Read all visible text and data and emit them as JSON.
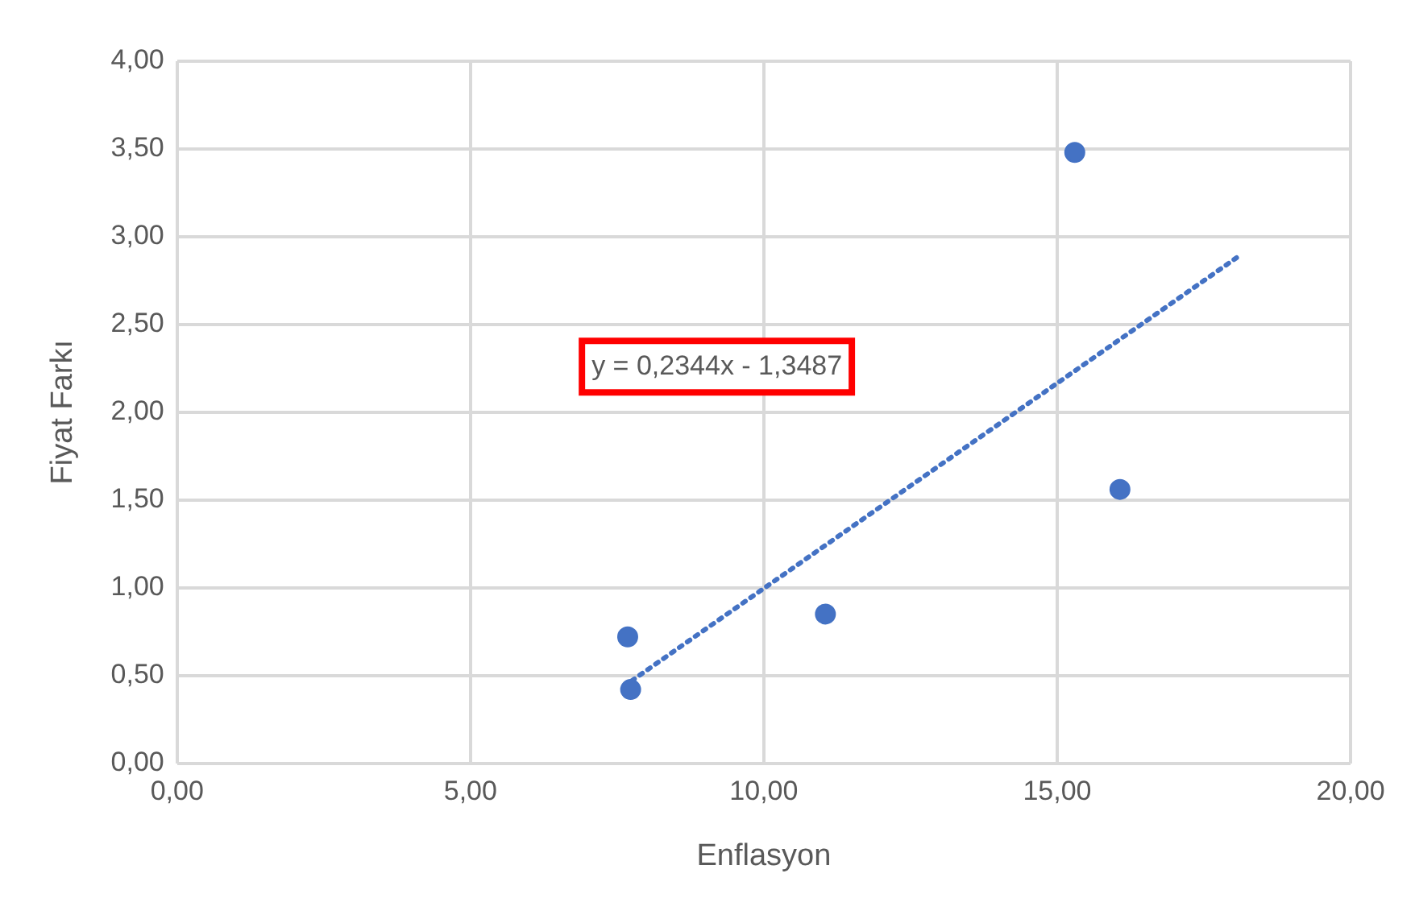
{
  "chart_data": {
    "type": "scatter",
    "xlabel": "Enflasyon",
    "ylabel": "Fiyat Farkı",
    "series": [
      {
        "color": "#4472c4",
        "x": [
          7.68,
          7.73,
          11.05,
          15.3,
          16.07
        ],
        "values": [
          0.72,
          0.42,
          0.85,
          3.48,
          1.56
        ]
      },
      {
        "type": "line",
        "color": "#4472c4",
        "line_style": "dotted",
        "marker": "none",
        "x": [
          7.75,
          18.1
        ],
        "values": [
          0.47,
          2.89
        ]
      }
    ],
    "xlim": [
      0,
      20
    ],
    "ylim": [
      0,
      4
    ],
    "xticks": [
      {
        "value": 0,
        "label": "0,00"
      },
      {
        "value": 5,
        "label": "5,00"
      },
      {
        "value": 10,
        "label": "10,00"
      },
      {
        "value": 15,
        "label": "15,00"
      },
      {
        "value": 20,
        "label": "20,00"
      }
    ],
    "yticks": [
      {
        "value": 0,
        "label": "0,00"
      },
      {
        "value": 0.5,
        "label": "0,50"
      },
      {
        "value": 1,
        "label": "1,00"
      },
      {
        "value": 1.5,
        "label": "1,50"
      },
      {
        "value": 2,
        "label": "2,00"
      },
      {
        "value": 2.5,
        "label": "2,50"
      },
      {
        "value": 3,
        "label": "3,00"
      },
      {
        "value": 3.5,
        "label": "3,50"
      },
      {
        "value": 4,
        "label": "4,00"
      }
    ],
    "grid": true,
    "legend": false,
    "marker": "circle",
    "annotations": [
      "y = 0,2344x - 1,3487"
    ]
  }
}
